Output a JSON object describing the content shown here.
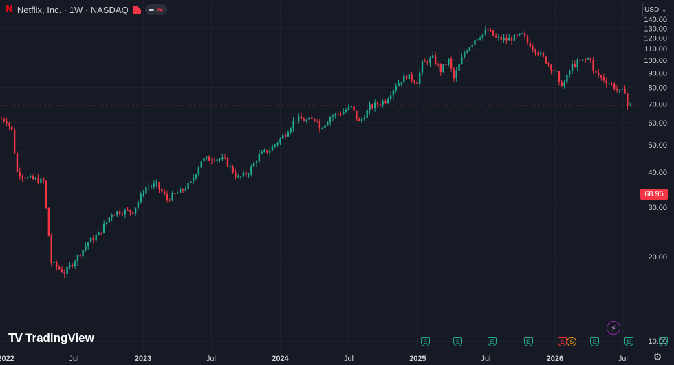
{
  "header": {
    "symbol_title": "Netflix, Inc. · 1W · NASDAQ",
    "logo_letter": "N",
    "wave_glyph": "≈"
  },
  "currency": {
    "label": "USD",
    "chevron": "⌄"
  },
  "last_price": "68.95",
  "brand": {
    "name": "TradingView",
    "mark": "TV"
  },
  "settings_glyph": "⚙",
  "spark_glyph": "⚡",
  "colors": {
    "background": "#161a25",
    "up": "#22ab94",
    "down": "#f23645",
    "grid": "#1f2330",
    "axis_text": "#d1d4dc",
    "price_line": "#f23645"
  },
  "events": [
    {
      "label": "E",
      "x_date": "2025-01-20",
      "kind": "earnings"
    },
    {
      "label": "E",
      "x_date": "2025-04-17",
      "kind": "earnings"
    },
    {
      "label": "E",
      "x_date": "2025-07-17",
      "kind": "earnings"
    },
    {
      "label": "E",
      "x_date": "2025-10-21",
      "kind": "earnings"
    },
    {
      "label": "E",
      "x_date": "2026-01-20",
      "kind": "earnings-miss"
    },
    {
      "label": "S",
      "x_date": "2026-01-20",
      "kind": "split"
    },
    {
      "label": "E",
      "x_date": "2026-04-16",
      "kind": "earnings"
    },
    {
      "label": "E",
      "x_date": "2026-07-16",
      "kind": "earnings"
    },
    {
      "label": "E",
      "x_date": "2026-10-15",
      "kind": "earnings"
    }
  ],
  "chart_data": {
    "type": "line",
    "title": "Netflix, Inc. · 1W · NASDAQ",
    "xlabel": "",
    "ylabel": "",
    "y_scale": "log",
    "ylim": [
      9.3,
      145
    ],
    "y_ticks": [
      "140.00",
      "130.00",
      "120.00",
      "110.00",
      "100.00",
      "90.00",
      "80.00",
      "70.00",
      "60.00",
      "50.00",
      "40.00",
      "30.00",
      "20.00",
      "10.00"
    ],
    "y_tick_values": [
      140,
      130,
      120,
      110,
      100,
      90,
      80,
      70,
      60,
      50,
      40,
      30,
      20,
      10
    ],
    "x_ticks": [
      "2022",
      "Jul",
      "2023",
      "Jul",
      "2024",
      "Jul",
      "2025",
      "Jul",
      "2026",
      "Jul"
    ],
    "x_tick_dates": [
      "2022-01-01",
      "2022-07-01",
      "2023-01-01",
      "2023-07-01",
      "2024-01-01",
      "2024-07-01",
      "2025-01-01",
      "2025-07-01",
      "2026-01-01",
      "2026-07-01"
    ],
    "grid": true,
    "series": [
      {
        "x": [
          "2021-12-20",
          "2022-01-10",
          "2022-01-24",
          "2022-02-07",
          "2022-03-07",
          "2022-04-18",
          "2022-05-09",
          "2022-06-13",
          "2022-07-18",
          "2022-08-15",
          "2022-09-12",
          "2022-10-17",
          "2022-11-14",
          "2022-12-12",
          "2023-01-16",
          "2023-02-13",
          "2023-03-13",
          "2023-04-17",
          "2023-05-15",
          "2023-06-12",
          "2023-07-17",
          "2023-08-14",
          "2023-09-18",
          "2023-10-16",
          "2023-11-13",
          "2023-12-11",
          "2024-01-22",
          "2024-02-19",
          "2024-03-18",
          "2024-04-15",
          "2024-04-22",
          "2024-05-20",
          "2024-06-17",
          "2024-07-15",
          "2024-08-05",
          "2024-09-02",
          "2024-10-14",
          "2024-11-11",
          "2024-12-09",
          "2025-01-06",
          "2025-01-20",
          "2025-02-17",
          "2025-03-10",
          "2025-03-31",
          "2025-04-14",
          "2025-05-12",
          "2025-06-09",
          "2025-06-30",
          "2025-07-14",
          "2025-08-04",
          "2025-09-01",
          "2025-10-13",
          "2025-10-27",
          "2025-11-24",
          "2025-12-22",
          "2026-01-12",
          "2026-01-19",
          "2026-02-02",
          "2026-02-23",
          "2026-03-16",
          "2026-04-13",
          "2026-04-20",
          "2026-05-11",
          "2026-06-08",
          "2026-06-29",
          "2026-07-13",
          "2026-07-20"
        ],
        "values": [
          62,
          61,
          56,
          40,
          38,
          37,
          19,
          17.5,
          20,
          22.5,
          24,
          28.5,
          29,
          29,
          35.5,
          36,
          32,
          34,
          36.5,
          44,
          45,
          44,
          38,
          40,
          46,
          48,
          55,
          62,
          61,
          62,
          57,
          63,
          65,
          68,
          60,
          68,
          72,
          82,
          88,
          84,
          97,
          102,
          92,
          100,
          86,
          107,
          119,
          124,
          128,
          120,
          118,
          123,
          116,
          107,
          97,
          90,
          82,
          83,
          96,
          99,
          102,
          91,
          87,
          82,
          77,
          78,
          68.95
        ]
      }
    ]
  }
}
